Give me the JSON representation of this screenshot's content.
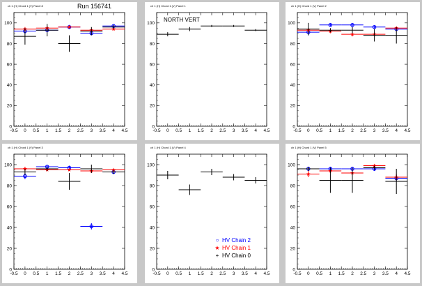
{
  "run_label": "Run 156741",
  "chart_data": [
    {
      "type": "scatter",
      "panel_title": "ch 1 (H) Chord 1 (V) Panel 8",
      "annotation": "",
      "xlim": [
        -0.5,
        4.5
      ],
      "ylim": [
        0,
        110
      ],
      "x_ticks": [
        "-0.5",
        "0",
        "0.5",
        "1",
        "1.5",
        "2",
        "2.5",
        "3",
        "3.5",
        "4",
        "4.5"
      ],
      "y_ticks": [
        "0",
        "20",
        "40",
        "60",
        "80",
        "100"
      ],
      "series": [
        {
          "color": "#0000ff",
          "marker": "circle",
          "x": [
            0,
            1,
            2,
            3,
            4
          ],
          "y": [
            92,
            93,
            96,
            90,
            97
          ],
          "xerr": 0.5,
          "yerr": [
            3,
            2,
            2,
            2,
            1
          ]
        },
        {
          "color": "#ff0000",
          "marker": "star",
          "x": [
            0,
            1,
            2,
            3,
            4
          ],
          "y": [
            94,
            95,
            96,
            93,
            94
          ],
          "xerr": 0.5,
          "yerr": [
            2,
            2,
            1,
            1,
            1
          ]
        },
        {
          "color": "#000000",
          "marker": "plus",
          "x": [
            0,
            1,
            2,
            3,
            4
          ],
          "y": [
            87,
            93,
            80,
            92,
            96
          ],
          "xerr": 0.5,
          "yerr": [
            8,
            6,
            8,
            4,
            2
          ]
        }
      ]
    },
    {
      "type": "scatter",
      "panel_title": "ch 1 (H) Chord 1 (V) Panel 1",
      "annotation": "NORTH VERT",
      "xlim": [
        -0.5,
        4.5
      ],
      "ylim": [
        0,
        110
      ],
      "x_ticks": [
        "-0.5",
        "0",
        "0.5",
        "1",
        "1.5",
        "2",
        "2.5",
        "3",
        "3.5",
        "4",
        "4.5"
      ],
      "y_ticks": [
        "0",
        "20",
        "40",
        "60",
        "80",
        "100"
      ],
      "series": [
        {
          "color": "#000000",
          "marker": "plus",
          "x": [
            0,
            1,
            2,
            3,
            4
          ],
          "y": [
            89,
            94,
            97,
            97,
            93
          ],
          "xerr": 0.5,
          "yerr": [
            2,
            2,
            1,
            1,
            1
          ]
        }
      ]
    },
    {
      "type": "scatter",
      "panel_title": "ch 1 (H) Chord 1 (V) Panel 2",
      "annotation": "",
      "xlim": [
        -0.5,
        4.5
      ],
      "ylim": [
        0,
        110
      ],
      "x_ticks": [
        "-0.5",
        "0",
        "0.5",
        "1",
        "1.5",
        "2",
        "2.5",
        "3",
        "3.5",
        "4",
        "4.5"
      ],
      "y_ticks": [
        "0",
        "20",
        "40",
        "60",
        "80",
        "100"
      ],
      "series": [
        {
          "color": "#0000ff",
          "marker": "circle",
          "x": [
            0,
            1,
            2,
            3,
            4
          ],
          "y": [
            91,
            98,
            98,
            96,
            94
          ],
          "xerr": 0.5,
          "yerr": [
            3,
            1,
            1,
            1,
            1
          ]
        },
        {
          "color": "#ff0000",
          "marker": "star",
          "x": [
            0,
            1,
            2,
            3,
            4
          ],
          "y": [
            93,
            92,
            89,
            89,
            95
          ],
          "xerr": 0.5,
          "yerr": [
            2,
            2,
            2,
            2,
            1
          ]
        },
        {
          "color": "#000000",
          "marker": "plus",
          "x": [
            0,
            1,
            2,
            3,
            4
          ],
          "y": [
            94,
            93,
            93,
            88,
            88
          ],
          "xerr": 0.5,
          "yerr": [
            6,
            2,
            3,
            6,
            8
          ]
        }
      ]
    },
    {
      "type": "scatter",
      "panel_title": "ch 1 (H) Chord 1 (V) Panel 3",
      "annotation": "",
      "xlim": [
        -0.5,
        4.5
      ],
      "ylim": [
        0,
        110
      ],
      "x_ticks": [
        "-0.5",
        "0",
        "0.5",
        "1",
        "1.5",
        "2",
        "2.5",
        "3",
        "3.5",
        "4",
        "4.5"
      ],
      "y_ticks": [
        "0",
        "20",
        "40",
        "60",
        "80",
        "100"
      ],
      "series": [
        {
          "color": "#0000ff",
          "marker": "circle",
          "x": [
            0,
            1,
            2,
            3,
            4
          ],
          "y": [
            89,
            98,
            97,
            41,
            93
          ],
          "xerr": 0.5,
          "yerr": [
            3,
            1,
            2,
            3,
            2
          ]
        },
        {
          "color": "#ff0000",
          "marker": "star",
          "x": [
            0,
            1,
            2,
            3,
            4
          ],
          "y": [
            96,
            95,
            95,
            94,
            95
          ],
          "xerr": 0.5,
          "yerr": [
            2,
            1,
            1,
            2,
            1
          ]
        },
        {
          "color": "#000000",
          "marker": "plus",
          "x": [
            0,
            1,
            2,
            3,
            4
          ],
          "y": [
            93,
            96,
            84,
            96,
            93
          ],
          "xerr": 0.5,
          "yerr": [
            3,
            2,
            8,
            4,
            2
          ]
        }
      ]
    },
    {
      "type": "scatter",
      "panel_title": "ch 1 (H) Chord 1 (V) Panel 4",
      "annotation": "",
      "xlim": [
        -0.5,
        4.5
      ],
      "ylim": [
        0,
        110
      ],
      "x_ticks": [
        "-0.5",
        "0",
        "0.5",
        "1",
        "1.5",
        "2",
        "2.5",
        "3",
        "3.5",
        "4",
        "4.5"
      ],
      "y_ticks": [
        "0",
        "20",
        "40",
        "60",
        "80",
        "100"
      ],
      "legend": [
        {
          "label": "HV Chain 2",
          "color": "#0000ff",
          "marker": "circle"
        },
        {
          "label": "HV Chain 1",
          "color": "#ff0000",
          "marker": "star"
        },
        {
          "label": "HV Chain 0",
          "color": "#000000",
          "marker": "plus"
        }
      ],
      "series": [
        {
          "color": "#000000",
          "marker": "plus",
          "x": [
            0,
            1,
            2,
            3,
            4
          ],
          "y": [
            90,
            76,
            93,
            88,
            85
          ],
          "xerr": 0.5,
          "yerr": [
            4,
            5,
            3,
            3,
            3
          ]
        }
      ]
    },
    {
      "type": "scatter",
      "panel_title": "ch 1 (H) Chord 1 (V) Panel 5",
      "annotation": "",
      "xlim": [
        -0.5,
        4.5
      ],
      "ylim": [
        0,
        110
      ],
      "x_ticks": [
        "-0.5",
        "0",
        "0.5",
        "1",
        "1.5",
        "2",
        "2.5",
        "3",
        "3.5",
        "4",
        "4.5"
      ],
      "y_ticks": [
        "0",
        "20",
        "40",
        "60",
        "80",
        "100"
      ],
      "series": [
        {
          "color": "#0000ff",
          "marker": "circle",
          "x": [
            0,
            1,
            2,
            3,
            4
          ],
          "y": [
            96,
            96,
            96,
            96,
            87
          ],
          "xerr": 0.5,
          "yerr": [
            2,
            2,
            2,
            2,
            3
          ]
        },
        {
          "color": "#ff0000",
          "marker": "star",
          "x": [
            0,
            1,
            2,
            3,
            4
          ],
          "y": [
            91,
            94,
            92,
            99,
            88
          ],
          "xerr": 0.5,
          "yerr": [
            3,
            2,
            2,
            1,
            3
          ]
        },
        {
          "color": "#000000",
          "marker": "plus",
          "x": [
            0,
            1,
            2,
            3,
            4
          ],
          "y": [
            96,
            85,
            85,
            97,
            84
          ],
          "xerr": 0.5,
          "yerr": [
            2,
            12,
            12,
            2,
            12
          ]
        }
      ]
    }
  ]
}
